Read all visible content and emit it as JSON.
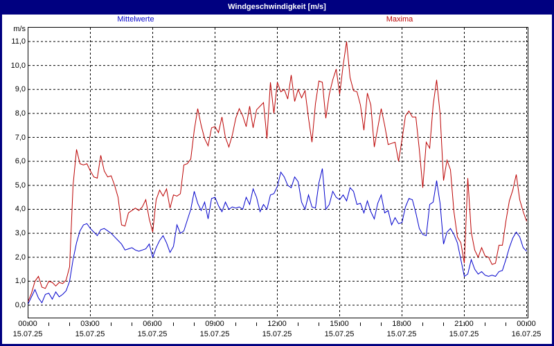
{
  "window": {
    "title": "Windgeschwindigkeit [m/s]"
  },
  "colors": {
    "frame": "#000080",
    "titlebar_bg": "#000080",
    "titlebar_text": "#ffffff",
    "mean_line": "#0000cc",
    "max_line": "#bb0000",
    "grid": "#000000",
    "background": "#ffffff"
  },
  "chart_data": {
    "type": "line",
    "title": "Windgeschwindigkeit [m/s]",
    "xlabel": "",
    "ylabel": "m/s",
    "ylim": [
      0,
      11
    ],
    "x_hours": [
      0,
      24
    ],
    "start_time": "00:00",
    "interval_minutes": 10,
    "grid": "dashed",
    "legend_position": "top",
    "ytick_labels": [
      "0,0",
      "1,0",
      "2,0",
      "3,0",
      "4,0",
      "5,0",
      "6,0",
      "7,0",
      "8,0",
      "9,0",
      "10,0",
      "11,0"
    ],
    "xticks": [
      {
        "time": "00:00",
        "date": "15.07.25"
      },
      {
        "time": "03:00",
        "date": "15.07.25"
      },
      {
        "time": "06:00",
        "date": "15.07.25"
      },
      {
        "time": "09:00",
        "date": "15.07.25"
      },
      {
        "time": "12:00",
        "date": "15.07.25"
      },
      {
        "time": "15:00",
        "date": "15.07.25"
      },
      {
        "time": "18:00",
        "date": "15.07.25"
      },
      {
        "time": "21:00",
        "date": "15.07.25"
      },
      {
        "time": "00:00",
        "date": "16.07.25"
      }
    ],
    "series": [
      {
        "name": "Mittelwerte",
        "color": "#0000cc",
        "values": [
          0.05,
          0.35,
          0.65,
          0.3,
          0.1,
          0.45,
          0.5,
          0.25,
          0.55,
          0.35,
          0.45,
          0.6,
          1.0,
          1.9,
          2.6,
          3.1,
          3.35,
          3.4,
          3.2,
          3.05,
          2.9,
          3.15,
          3.2,
          3.1,
          3.0,
          2.85,
          2.7,
          2.55,
          2.3,
          2.35,
          2.4,
          2.3,
          2.25,
          2.3,
          2.35,
          2.55,
          2.0,
          2.4,
          2.7,
          2.9,
          2.6,
          2.2,
          2.45,
          3.35,
          3.0,
          3.1,
          3.55,
          4.0,
          4.75,
          4.25,
          3.95,
          4.3,
          3.6,
          4.45,
          4.5,
          4.15,
          3.9,
          4.3,
          4.0,
          4.1,
          4.05,
          4.1,
          4.0,
          4.5,
          4.2,
          4.85,
          4.5,
          3.9,
          4.2,
          4.0,
          4.6,
          4.65,
          4.95,
          5.55,
          5.35,
          5.0,
          4.9,
          5.35,
          5.15,
          4.3,
          4.0,
          4.6,
          4.1,
          4.05,
          5.1,
          5.7,
          4.0,
          4.2,
          4.75,
          4.5,
          4.4,
          4.6,
          4.35,
          4.9,
          4.75,
          4.2,
          4.25,
          3.85,
          4.35,
          3.9,
          3.6,
          4.25,
          4.6,
          3.85,
          3.95,
          3.35,
          3.65,
          3.4,
          3.45,
          4.1,
          4.45,
          4.4,
          3.85,
          3.2,
          2.95,
          2.9,
          4.2,
          4.3,
          5.2,
          4.25,
          2.55,
          3.05,
          3.2,
          2.95,
          2.6,
          1.9,
          1.2,
          1.3,
          1.9,
          1.5,
          1.3,
          1.4,
          1.25,
          1.2,
          1.25,
          1.2,
          1.4,
          1.45,
          1.9,
          2.4,
          2.8,
          3.05,
          2.85,
          2.4,
          2.25
        ]
      },
      {
        "name": "Maxima",
        "color": "#bb0000",
        "values": [
          0.15,
          0.5,
          1.0,
          1.2,
          0.75,
          0.7,
          1.0,
          0.95,
          0.8,
          0.95,
          0.9,
          1.05,
          1.6,
          5.0,
          6.5,
          5.9,
          5.85,
          5.9,
          5.6,
          5.35,
          5.3,
          6.25,
          5.6,
          5.35,
          5.4,
          5.0,
          4.5,
          3.35,
          3.3,
          3.85,
          3.95,
          4.05,
          3.95,
          4.1,
          4.4,
          3.6,
          3.05,
          4.4,
          4.8,
          4.55,
          4.85,
          4.05,
          4.6,
          4.55,
          4.65,
          5.85,
          5.9,
          6.1,
          7.3,
          8.2,
          7.5,
          6.95,
          6.65,
          7.4,
          7.45,
          7.2,
          7.85,
          7.0,
          6.6,
          7.1,
          7.8,
          8.2,
          7.9,
          7.45,
          8.3,
          7.4,
          8.15,
          8.3,
          8.45,
          6.95,
          9.3,
          8.0,
          9.3,
          8.9,
          9.0,
          8.6,
          9.6,
          8.5,
          9.0,
          8.65,
          8.95,
          7.8,
          6.8,
          8.4,
          9.35,
          9.3,
          7.8,
          8.8,
          9.4,
          9.85,
          8.8,
          10.0,
          11.0,
          9.5,
          8.95,
          8.9,
          8.35,
          7.3,
          8.85,
          8.35,
          6.6,
          7.4,
          8.2,
          7.5,
          6.7,
          6.75,
          6.8,
          6.0,
          6.9,
          7.9,
          8.1,
          7.85,
          7.85,
          6.5,
          4.9,
          6.8,
          6.55,
          8.35,
          9.4,
          8.0,
          5.2,
          6.05,
          5.65,
          3.9,
          2.85,
          2.6,
          1.75,
          5.3,
          3.05,
          2.3,
          2.0,
          2.4,
          2.05,
          2.0,
          1.7,
          1.75,
          2.5,
          2.5,
          3.5,
          4.35,
          4.8,
          5.45,
          4.4,
          3.9,
          3.5
        ]
      }
    ]
  }
}
